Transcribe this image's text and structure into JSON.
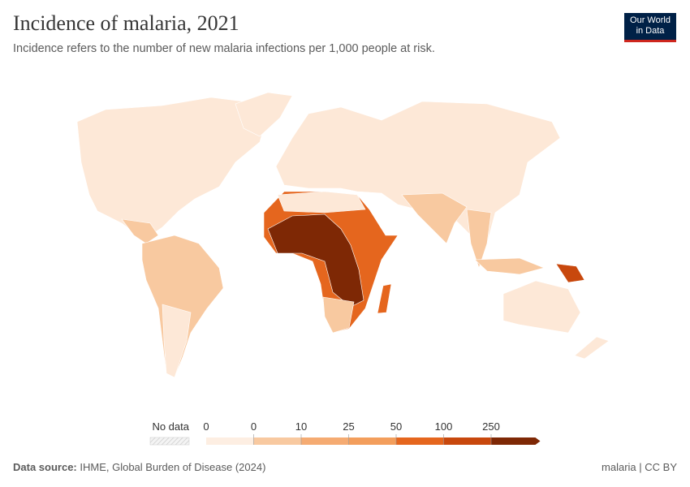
{
  "header": {
    "title": "Incidence of malaria, 2021",
    "subtitle": "Incidence refers to the number of new malaria infections per 1,000 people at risk."
  },
  "logo": {
    "lines": [
      "Our World",
      "in Data"
    ]
  },
  "legend": {
    "no_data": "No data",
    "labels": [
      0,
      0,
      10,
      25,
      50,
      100,
      250
    ],
    "colors": [
      "#fdeee2",
      "#f8c9a0",
      "#f5ab72",
      "#f39e5c",
      "#e5661e",
      "#c8480d",
      "#7e2805"
    ]
  },
  "footer": {
    "source_label": "Data source:",
    "source": "IHME, Global Burden of Disease (2024)",
    "license": "malaria | CC BY"
  }
}
